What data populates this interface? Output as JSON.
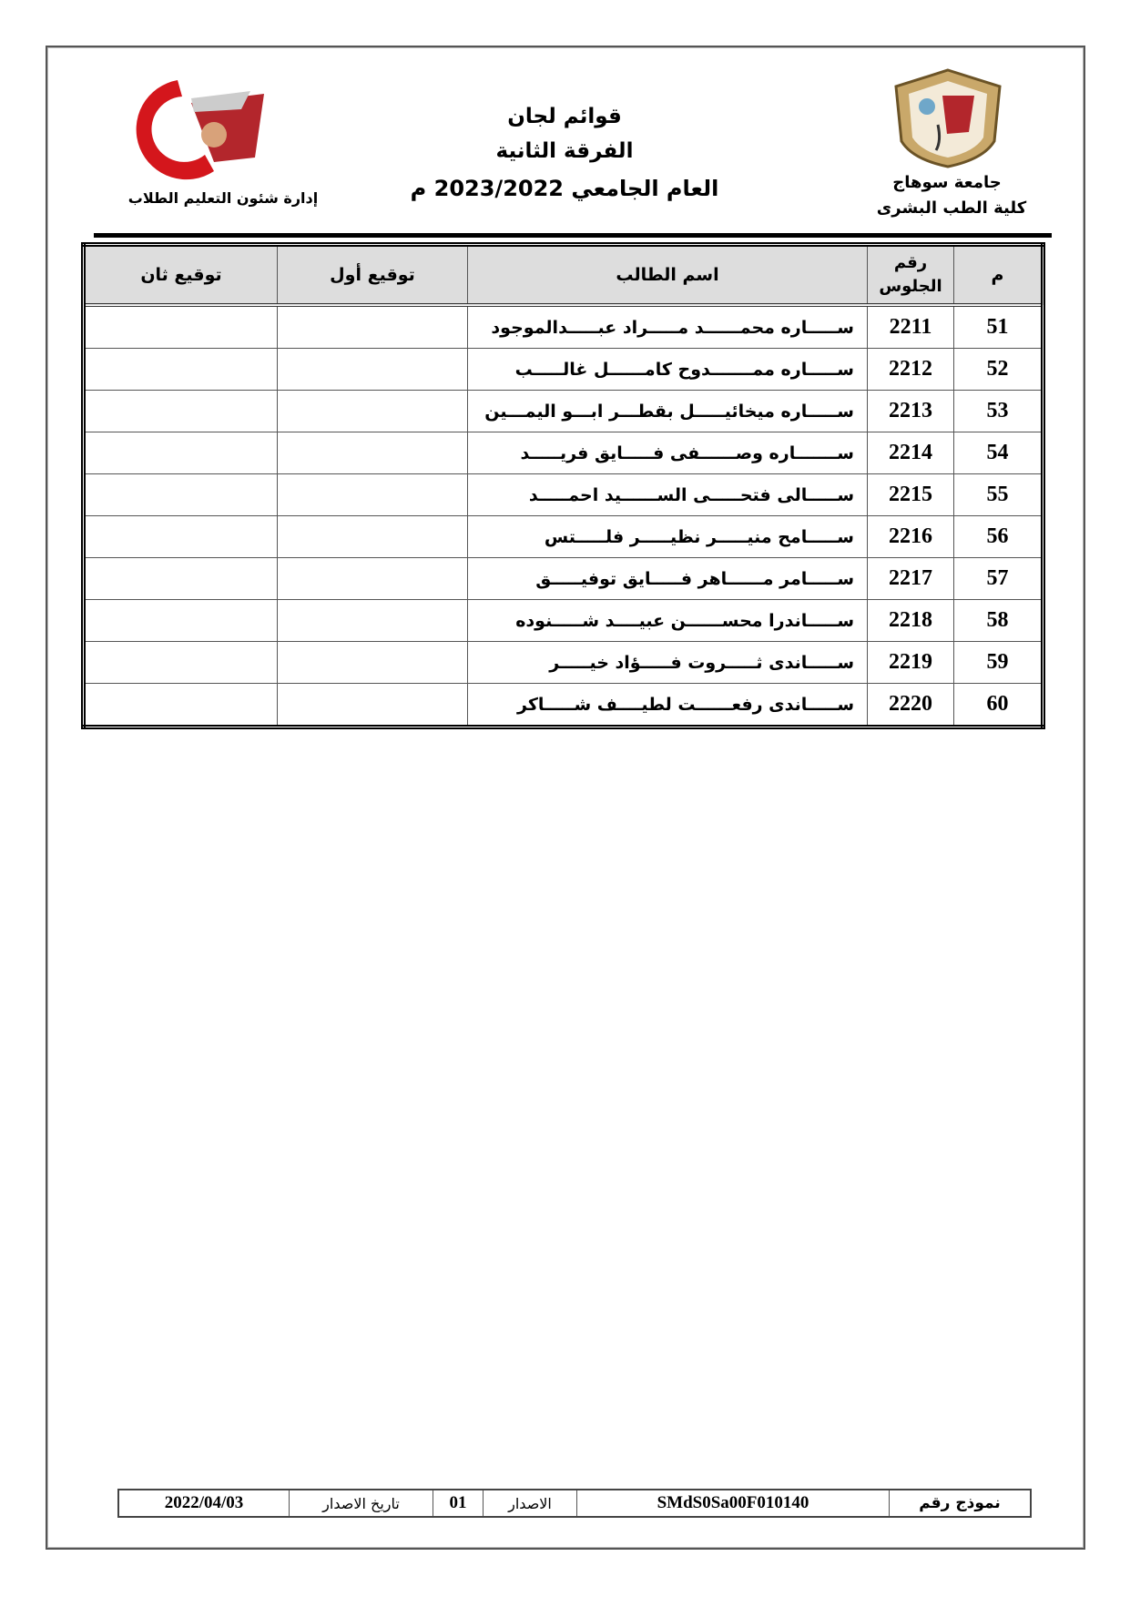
{
  "header": {
    "right": {
      "university": "جامعة سوهاج",
      "faculty": "كلية الطب البشرى"
    },
    "center": {
      "line1": "قوائم لجان",
      "line2": "الفرقة الثانية",
      "line3": "العام الجامعي 2023/2022 م"
    },
    "left": {
      "department": "إدارة شئون التعليم الطلاب",
      "logo_text": "جامعة سوهاج كلية الطب"
    }
  },
  "table": {
    "columns": {
      "index": "م",
      "seat": "رقم الجلوس",
      "name": "اسم الطالب",
      "sig1": "توقيع أول",
      "sig2": "توقيع ثان"
    },
    "rows": [
      {
        "index": "51",
        "seat": "2211",
        "name": "ســـــاره محمــــــد مـــــراد عبـــــدالموجود"
      },
      {
        "index": "52",
        "seat": "2212",
        "name": "ســـــاره ممـــــــدوح كامــــــل غالـــــب"
      },
      {
        "index": "53",
        "seat": "2213",
        "name": "ســـــاره ميخائيـــــل بقطـــر ابـــو اليمـــين"
      },
      {
        "index": "54",
        "seat": "2214",
        "name": "ســـــــاره وصــــــفى فـــــايق فريـــــد"
      },
      {
        "index": "55",
        "seat": "2215",
        "name": "ســـــالى فتحـــــى الســــــيد احمـــــد"
      },
      {
        "index": "56",
        "seat": "2216",
        "name": "ســـــامح منيـــــر نظيـــــر فلـــــتس"
      },
      {
        "index": "57",
        "seat": "2217",
        "name": "ســـــامر مــــــاهر فـــــايق توفيـــــق"
      },
      {
        "index": "58",
        "seat": "2218",
        "name": "ســـــاندرا محســــــن عبيــــد شـــــنوده"
      },
      {
        "index": "59",
        "seat": "2219",
        "name": "ســـــاندى ثـــــروت فـــــؤاد خيـــــر"
      },
      {
        "index": "60",
        "seat": "2220",
        "name": "ســـــاندى رفعــــــت لطيــــف شـــــاكر"
      }
    ]
  },
  "footer": {
    "form_label": "نموذج رقم",
    "form_value": "SMdS0Sa00F010140",
    "issue_label": "الاصدار",
    "issue_value": "01",
    "date_label": "تاريخ الاصدار",
    "date_value": "2022/04/03"
  }
}
